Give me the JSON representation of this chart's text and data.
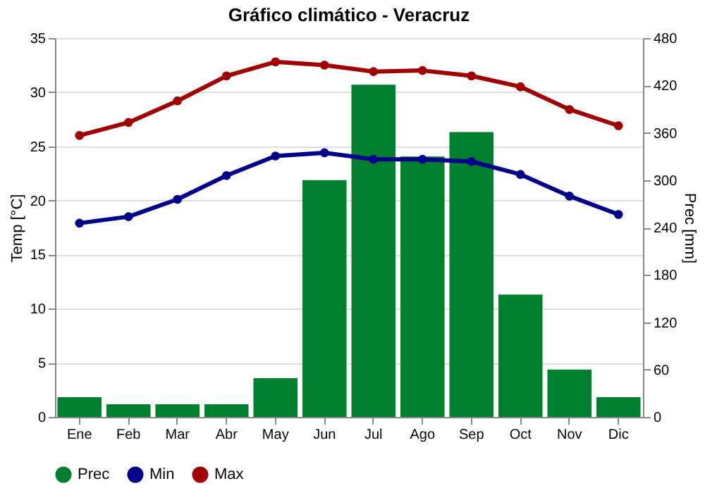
{
  "chart_data": {
    "type": "line",
    "title": "Gráfico climático - Veracruz",
    "ylabel": "Temp [°C]",
    "y2label": "Prec [mm]",
    "categories": [
      "Ene",
      "Feb",
      "Mar",
      "Abr",
      "May",
      "Jun",
      "Jul",
      "Ago",
      "Sep",
      "Oct",
      "Nov",
      "Dic"
    ],
    "series": [
      {
        "name": "Prec",
        "type": "bar",
        "axis": "y2",
        "color": "#007f2f",
        "values": [
          25,
          16,
          16,
          16,
          49,
          300,
          421,
          330,
          361,
          155,
          60,
          25
        ]
      },
      {
        "name": "Min",
        "color": "#00008b",
        "values": [
          17.9,
          18.5,
          20.1,
          22.3,
          24.1,
          24.4,
          23.8,
          23.8,
          23.6,
          22.4,
          20.4,
          18.7
        ]
      },
      {
        "name": "Max",
        "color": "#a00000",
        "values": [
          26,
          27.2,
          29.2,
          31.5,
          32.8,
          32.5,
          31.9,
          32,
          31.5,
          30.5,
          28.4,
          26.9
        ]
      }
    ],
    "ylim": [
      0,
      35
    ],
    "yticks": [
      0,
      5,
      10,
      15,
      20,
      25,
      30,
      35
    ],
    "y2lim": [
      0,
      480
    ],
    "y2ticks": [
      0,
      60,
      120,
      180,
      240,
      300,
      360,
      420,
      480
    ],
    "grid": "y",
    "legend": "bottom",
    "marker": "circle",
    "line_style": "solid"
  }
}
